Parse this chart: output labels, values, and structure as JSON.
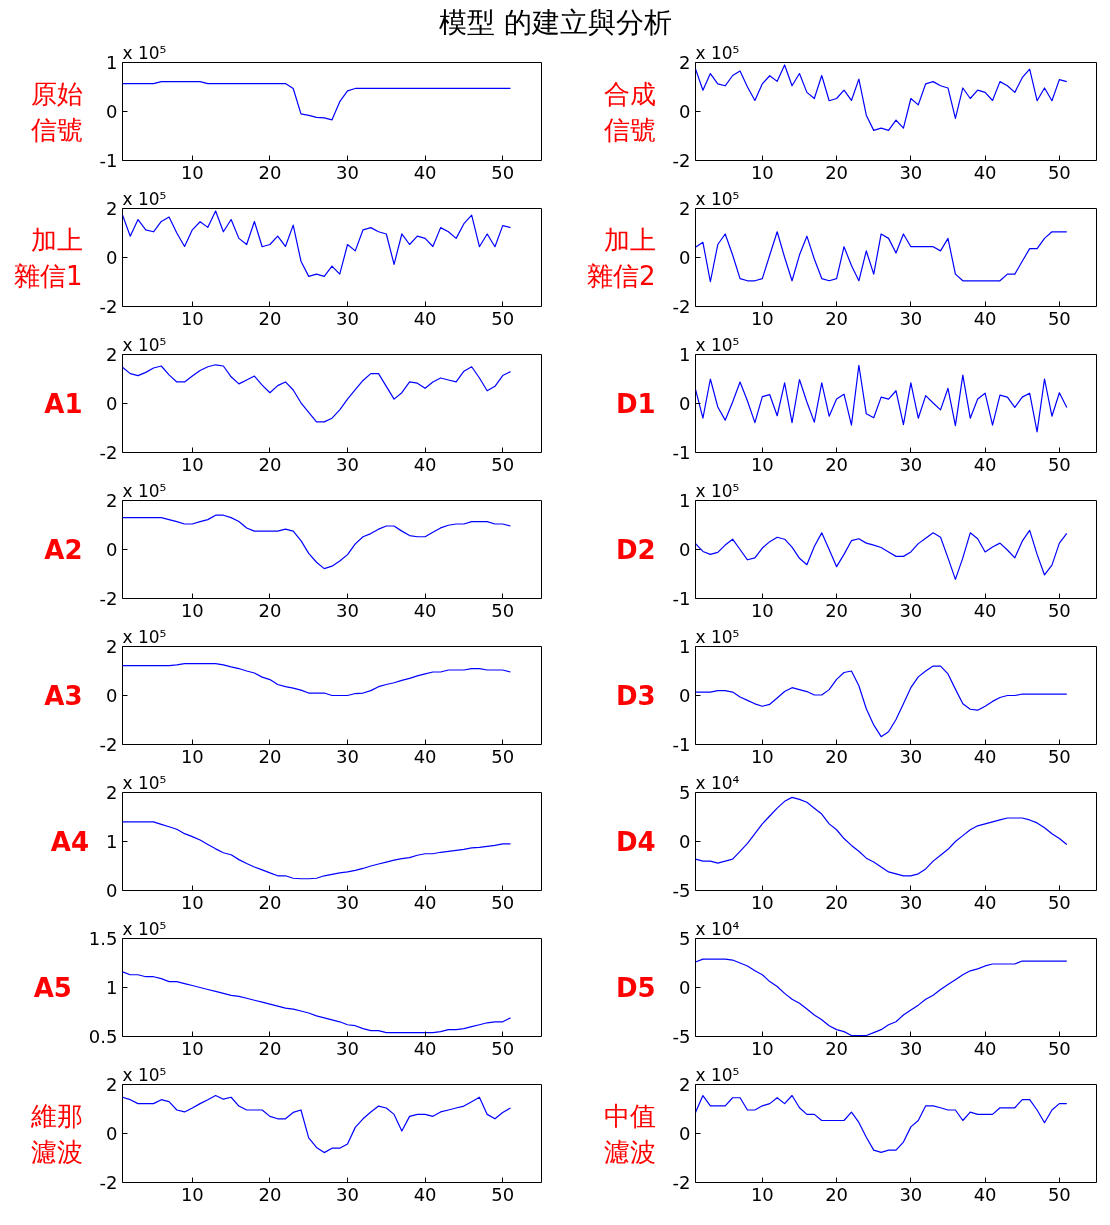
{
  "chart_data": [
    {
      "type": "line",
      "title": "模型 的建立與分析",
      "ylabel": "原始信號",
      "annotations": [
        "x 10⁵"
      ],
      "x": [
        1,
        2,
        3,
        4,
        5,
        6,
        7,
        8,
        9,
        10,
        11,
        12,
        13,
        14,
        15,
        16,
        17,
        18,
        19,
        20,
        21,
        22,
        23,
        24,
        25,
        26,
        27,
        28,
        29,
        30,
        31,
        32,
        33,
        34,
        35,
        36,
        37,
        38,
        39,
        40,
        41,
        42,
        43,
        44,
        45,
        46,
        47,
        48,
        49,
        50,
        51
      ],
      "xlim": [
        1,
        55
      ],
      "xticks": [
        10,
        20,
        30,
        40,
        50
      ],
      "ylim": [
        -1,
        1
      ],
      "yticks": [
        -1,
        0,
        1
      ],
      "series": [
        {
          "color": "#0000ff",
          "values": [
            0.57,
            0.57,
            0.57,
            0.57,
            0.57,
            0.61,
            0.61,
            0.61,
            0.61,
            0.61,
            0.61,
            0.57,
            0.57,
            0.57,
            0.57,
            0.57,
            0.57,
            0.57,
            0.57,
            0.57,
            0.57,
            0.57,
            0.47,
            -0.05,
            -0.08,
            -0.12,
            -0.13,
            -0.17,
            0.2,
            0.42,
            0.47,
            0.47,
            0.47,
            0.47,
            0.47,
            0.47,
            0.47,
            0.47,
            0.47,
            0.47,
            0.47,
            0.47,
            0.47,
            0.47,
            0.47,
            0.47,
            0.47,
            0.47,
            0.47,
            0.47,
            0.47
          ]
        }
      ]
    },
    {
      "type": "line",
      "ylabel": "合成信號",
      "annotations": [
        "x 10⁵"
      ],
      "x": [
        1,
        2,
        3,
        4,
        5,
        6,
        7,
        8,
        9,
        10,
        11,
        12,
        13,
        14,
        15,
        16,
        17,
        18,
        19,
        20,
        21,
        22,
        23,
        24,
        25,
        26,
        27,
        28,
        29,
        30,
        31,
        32,
        33,
        34,
        35,
        36,
        37,
        38,
        39,
        40,
        41,
        42,
        43,
        44,
        45,
        46,
        47,
        48,
        49,
        50,
        51
      ],
      "xlim": [
        1,
        55
      ],
      "xticks": [
        10,
        20,
        30,
        40,
        50
      ],
      "ylim": [
        -2,
        2
      ],
      "yticks": [
        -2,
        0,
        2
      ],
      "series": [
        {
          "color": "#0000ff",
          "values": [
            1.74,
            0.87,
            1.55,
            1.13,
            1.05,
            1.47,
            1.65,
            1.0,
            0.45,
            1.13,
            1.46,
            1.23,
            1.9,
            1.05,
            1.55,
            0.78,
            0.53,
            1.47,
            0.44,
            0.53,
            0.87,
            0.45,
            1.32,
            -0.15,
            -0.77,
            -0.68,
            -0.77,
            -0.35,
            -0.68,
            0.53,
            0.27,
            1.13,
            1.22,
            1.05,
            0.96,
            -0.28,
            0.96,
            0.53,
            0.87,
            0.78,
            0.45,
            1.22,
            1.05,
            0.78,
            1.38,
            1.73,
            0.44,
            0.96,
            0.44,
            1.3,
            1.22
          ]
        }
      ]
    },
    {
      "type": "line",
      "ylabel": "加上雜信1",
      "annotations": [
        "x 10⁵"
      ],
      "x": [
        1,
        2,
        3,
        4,
        5,
        6,
        7,
        8,
        9,
        10,
        11,
        12,
        13,
        14,
        15,
        16,
        17,
        18,
        19,
        20,
        21,
        22,
        23,
        24,
        25,
        26,
        27,
        28,
        29,
        30,
        31,
        32,
        33,
        34,
        35,
        36,
        37,
        38,
        39,
        40,
        41,
        42,
        43,
        44,
        45,
        46,
        47,
        48,
        49,
        50,
        51
      ],
      "xlim": [
        1,
        55
      ],
      "xticks": [
        10,
        20,
        30,
        40,
        50
      ],
      "ylim": [
        -2,
        2
      ],
      "yticks": [
        -2,
        0,
        2
      ],
      "series": [
        {
          "color": "#0000ff",
          "values": [
            1.74,
            0.87,
            1.55,
            1.13,
            1.05,
            1.47,
            1.65,
            1.0,
            0.45,
            1.13,
            1.46,
            1.23,
            1.9,
            1.05,
            1.55,
            0.78,
            0.53,
            1.47,
            0.44,
            0.53,
            0.87,
            0.45,
            1.32,
            -0.15,
            -0.77,
            -0.68,
            -0.77,
            -0.35,
            -0.68,
            0.53,
            0.27,
            1.13,
            1.22,
            1.05,
            0.96,
            -0.28,
            0.96,
            0.53,
            0.87,
            0.78,
            0.45,
            1.22,
            1.05,
            0.78,
            1.38,
            1.73,
            0.44,
            0.96,
            0.44,
            1.3,
            1.22
          ]
        }
      ]
    },
    {
      "type": "line",
      "ylabel": "加上雜信2",
      "annotations": [
        "x 10⁵"
      ],
      "x": [
        1,
        2,
        3,
        4,
        5,
        6,
        7,
        8,
        9,
        10,
        11,
        12,
        13,
        14,
        15,
        16,
        17,
        18,
        19,
        20,
        21,
        22,
        23,
        24,
        25,
        26,
        27,
        28,
        29,
        30,
        31,
        32,
        33,
        34,
        35,
        36,
        37,
        38,
        39,
        40,
        41,
        42,
        43,
        44,
        45,
        46,
        47,
        48,
        49,
        50,
        51
      ],
      "xlim": [
        1,
        55
      ],
      "xticks": [
        10,
        20,
        30,
        40,
        50
      ],
      "ylim": [
        -2,
        2
      ],
      "yticks": [
        -2,
        0,
        2
      ],
      "series": [
        {
          "color": "#0000ff",
          "values": [
            0.42,
            0.62,
            -0.99,
            0.53,
            0.96,
            0.1,
            -0.86,
            -0.95,
            -0.95,
            -0.86,
            0.1,
            1.05,
            0.01,
            -0.95,
            0.1,
            0.87,
            -0.06,
            -0.86,
            -0.95,
            -0.86,
            0.44,
            -0.33,
            -0.95,
            0.27,
            -0.68,
            0.96,
            0.78,
            0.18,
            0.96,
            0.44,
            0.44,
            0.44,
            0.44,
            0.27,
            0.78,
            -0.68,
            -0.95,
            -0.95,
            -0.95,
            -0.95,
            -0.95,
            -0.95,
            -0.68,
            -0.68,
            -0.15,
            0.36,
            0.36,
            0.78,
            1.05,
            1.05,
            1.05
          ]
        }
      ]
    },
    {
      "type": "line",
      "ylabel": "A1",
      "annotations": [
        "x 10⁵"
      ],
      "x": [
        1,
        2,
        3,
        4,
        5,
        6,
        7,
        8,
        9,
        10,
        11,
        12,
        13,
        14,
        15,
        16,
        17,
        18,
        19,
        20,
        21,
        22,
        23,
        24,
        25,
        26,
        27,
        28,
        29,
        30,
        31,
        32,
        33,
        34,
        35,
        36,
        37,
        38,
        39,
        40,
        41,
        42,
        43,
        44,
        45,
        46,
        47,
        48,
        49,
        50,
        51
      ],
      "xlim": [
        1,
        55
      ],
      "xticks": [
        10,
        20,
        30,
        40,
        50
      ],
      "ylim": [
        -2,
        2
      ],
      "yticks": [
        -2,
        0,
        2
      ],
      "series": [
        {
          "color": "#0000ff",
          "values": [
            1.48,
            1.22,
            1.14,
            1.27,
            1.45,
            1.53,
            1.17,
            0.88,
            0.88,
            1.12,
            1.35,
            1.5,
            1.58,
            1.53,
            1.09,
            0.8,
            0.96,
            1.12,
            0.75,
            0.44,
            0.73,
            0.88,
            0.55,
            0.03,
            -0.36,
            -0.75,
            -0.75,
            -0.6,
            -0.26,
            0.18,
            0.57,
            0.94,
            1.22,
            1.22,
            0.7,
            0.18,
            0.44,
            0.88,
            0.83,
            0.62,
            0.88,
            1.04,
            0.96,
            0.88,
            1.32,
            1.5,
            1.04,
            0.52,
            0.7,
            1.14,
            1.3
          ]
        }
      ]
    },
    {
      "type": "line",
      "ylabel": "D1",
      "annotations": [
        "x 10⁵"
      ],
      "x": [
        1,
        2,
        3,
        4,
        5,
        6,
        7,
        8,
        9,
        10,
        11,
        12,
        13,
        14,
        15,
        16,
        17,
        18,
        19,
        20,
        21,
        22,
        23,
        24,
        25,
        26,
        27,
        28,
        29,
        30,
        31,
        32,
        33,
        34,
        35,
        36,
        37,
        38,
        39,
        40,
        41,
        42,
        43,
        44,
        45,
        46,
        47,
        48,
        49,
        50,
        51
      ],
      "xlim": [
        1,
        55
      ],
      "xticks": [
        10,
        20,
        30,
        40,
        50
      ],
      "ylim": [
        -1,
        1
      ],
      "yticks": [
        -1,
        0,
        1
      ],
      "series": [
        {
          "color": "#0000ff",
          "values": [
            0.29,
            -0.3,
            0.5,
            -0.07,
            -0.34,
            0.03,
            0.44,
            0.05,
            -0.39,
            0.14,
            0.18,
            -0.25,
            0.42,
            -0.39,
            0.49,
            0.03,
            -0.38,
            0.42,
            -0.26,
            0.09,
            0.19,
            -0.44,
            0.78,
            -0.21,
            -0.29,
            0.13,
            0.09,
            0.26,
            -0.43,
            0.42,
            -0.3,
            0.16,
            0.01,
            -0.13,
            0.31,
            -0.45,
            0.58,
            -0.3,
            0.09,
            0.21,
            -0.44,
            0.17,
            0.13,
            -0.08,
            0.13,
            0.21,
            -0.58,
            0.5,
            -0.26,
            0.22,
            -0.08
          ]
        }
      ]
    },
    {
      "type": "line",
      "ylabel": "A2",
      "annotations": [
        "x 10⁵"
      ],
      "x": [
        1,
        2,
        3,
        4,
        5,
        6,
        7,
        8,
        9,
        10,
        11,
        12,
        13,
        14,
        15,
        16,
        17,
        18,
        19,
        20,
        21,
        22,
        23,
        24,
        25,
        26,
        27,
        28,
        29,
        30,
        31,
        32,
        33,
        34,
        35,
        36,
        37,
        38,
        39,
        40,
        41,
        42,
        43,
        44,
        45,
        46,
        47,
        48,
        49,
        50,
        51
      ],
      "xlim": [
        1,
        55
      ],
      "xticks": [
        10,
        20,
        30,
        40,
        50
      ],
      "ylim": [
        -2,
        2
      ],
      "yticks": [
        -2,
        0,
        2
      ],
      "series": [
        {
          "color": "#0000ff",
          "values": [
            1.3,
            1.3,
            1.3,
            1.3,
            1.3,
            1.3,
            1.22,
            1.14,
            1.04,
            1.04,
            1.14,
            1.22,
            1.4,
            1.4,
            1.3,
            1.14,
            0.88,
            0.75,
            0.75,
            0.75,
            0.75,
            0.83,
            0.75,
            0.36,
            -0.16,
            -0.52,
            -0.78,
            -0.68,
            -0.47,
            -0.21,
            0.23,
            0.52,
            0.65,
            0.83,
            0.96,
            0.96,
            0.75,
            0.57,
            0.52,
            0.52,
            0.7,
            0.88,
            0.99,
            1.04,
            1.04,
            1.14,
            1.14,
            1.14,
            1.04,
            1.04,
            0.96
          ]
        }
      ]
    },
    {
      "type": "line",
      "ylabel": "D2",
      "annotations": [
        "x 10⁵"
      ],
      "x": [
        1,
        2,
        3,
        4,
        5,
        6,
        7,
        8,
        9,
        10,
        11,
        12,
        13,
        14,
        15,
        16,
        17,
        18,
        19,
        20,
        21,
        22,
        23,
        24,
        25,
        26,
        27,
        28,
        29,
        30,
        31,
        32,
        33,
        34,
        35,
        36,
        37,
        38,
        39,
        40,
        41,
        42,
        43,
        44,
        45,
        46,
        47,
        48,
        49,
        50,
        51
      ],
      "xlim": [
        1,
        55
      ],
      "xticks": [
        10,
        20,
        30,
        40,
        50
      ],
      "ylim": [
        -1,
        1
      ],
      "yticks": [
        -1,
        0,
        1
      ],
      "series": [
        {
          "color": "#0000ff",
          "values": [
            0.12,
            -0.04,
            -0.1,
            -0.06,
            0.09,
            0.21,
            0,
            -0.21,
            -0.17,
            0.03,
            0.16,
            0.25,
            0.21,
            0.05,
            -0.18,
            -0.31,
            0.06,
            0.34,
            0,
            -0.35,
            -0.1,
            0.18,
            0.22,
            0.13,
            0.09,
            0.04,
            -0.05,
            -0.14,
            -0.14,
            -0.05,
            0.12,
            0.23,
            0.34,
            0.25,
            -0.17,
            -0.61,
            -0.17,
            0.34,
            0.22,
            -0.05,
            0.05,
            0.13,
            -0.01,
            -0.17,
            0.17,
            0.39,
            -0.1,
            -0.52,
            -0.32,
            0.13,
            0.33
          ]
        }
      ]
    },
    {
      "type": "line",
      "ylabel": "A3",
      "annotations": [
        "x 10⁵"
      ],
      "x": [
        1,
        2,
        3,
        4,
        5,
        6,
        7,
        8,
        9,
        10,
        11,
        12,
        13,
        14,
        15,
        16,
        17,
        18,
        19,
        20,
        21,
        22,
        23,
        24,
        25,
        26,
        27,
        28,
        29,
        30,
        31,
        32,
        33,
        34,
        35,
        36,
        37,
        38,
        39,
        40,
        41,
        42,
        43,
        44,
        45,
        46,
        47,
        48,
        49,
        50,
        51
      ],
      "xlim": [
        1,
        55
      ],
      "xticks": [
        10,
        20,
        30,
        40,
        50
      ],
      "ylim": [
        -2,
        2
      ],
      "yticks": [
        -2,
        0,
        2
      ],
      "series": [
        {
          "color": "#0000ff",
          "values": [
            1.22,
            1.22,
            1.22,
            1.22,
            1.22,
            1.22,
            1.22,
            1.25,
            1.3,
            1.3,
            1.3,
            1.3,
            1.3,
            1.25,
            1.17,
            1.1,
            1.0,
            0.92,
            0.75,
            0.65,
            0.45,
            0.36,
            0.3,
            0.22,
            0.1,
            0.1,
            0.1,
            0.0,
            0.0,
            0.0,
            0.08,
            0.1,
            0.2,
            0.36,
            0.45,
            0.52,
            0.62,
            0.7,
            0.8,
            0.88,
            0.96,
            0.96,
            1.04,
            1.04,
            1.04,
            1.1,
            1.1,
            1.04,
            1.04,
            1.04,
            0.96
          ]
        }
      ]
    },
    {
      "type": "line",
      "ylabel": "D3",
      "annotations": [
        "x 10⁵"
      ],
      "x": [
        1,
        2,
        3,
        4,
        5,
        6,
        7,
        8,
        9,
        10,
        11,
        12,
        13,
        14,
        15,
        16,
        17,
        18,
        19,
        20,
        21,
        22,
        23,
        24,
        25,
        26,
        27,
        28,
        29,
        30,
        31,
        32,
        33,
        34,
        35,
        36,
        37,
        38,
        39,
        40,
        41,
        42,
        43,
        44,
        45,
        46,
        47,
        48,
        49,
        50,
        51
      ],
      "xlim": [
        1,
        55
      ],
      "xticks": [
        10,
        20,
        30,
        40,
        50
      ],
      "ylim": [
        -1,
        1
      ],
      "yticks": [
        -1,
        0,
        1
      ],
      "series": [
        {
          "color": "#0000ff",
          "values": [
            0.07,
            0.07,
            0.07,
            0.1,
            0.1,
            0.07,
            -0.03,
            -0.1,
            -0.17,
            -0.22,
            -0.18,
            -0.05,
            0.08,
            0.16,
            0.12,
            0.08,
            0.01,
            0.01,
            0.12,
            0.33,
            0.47,
            0.5,
            0.2,
            -0.27,
            -0.6,
            -0.84,
            -0.74,
            -0.49,
            -0.17,
            0.16,
            0.38,
            0.5,
            0.6,
            0.6,
            0.44,
            0.13,
            -0.17,
            -0.28,
            -0.3,
            -0.22,
            -0.12,
            -0.04,
            0,
            0,
            0.03,
            0.03,
            0.03,
            0.03,
            0.03,
            0.03,
            0.03
          ]
        }
      ]
    },
    {
      "type": "line",
      "ylabel": "A4",
      "annotations": [
        "x 10⁵"
      ],
      "x": [
        1,
        2,
        3,
        4,
        5,
        6,
        7,
        8,
        9,
        10,
        11,
        12,
        13,
        14,
        15,
        16,
        17,
        18,
        19,
        20,
        21,
        22,
        23,
        24,
        25,
        26,
        27,
        28,
        29,
        30,
        31,
        32,
        33,
        34,
        35,
        36,
        37,
        38,
        39,
        40,
        41,
        42,
        43,
        44,
        45,
        46,
        47,
        48,
        49,
        50,
        51
      ],
      "xlim": [
        1,
        55
      ],
      "xticks": [
        10,
        20,
        30,
        40,
        50
      ],
      "ylim": [
        0,
        2
      ],
      "yticks": [
        0,
        1,
        2
      ],
      "series": [
        {
          "color": "#0000ff",
          "values": [
            1.4,
            1.4,
            1.4,
            1.4,
            1.4,
            1.35,
            1.3,
            1.25,
            1.16,
            1.1,
            1.03,
            0.94,
            0.85,
            0.77,
            0.73,
            0.63,
            0.55,
            0.48,
            0.42,
            0.36,
            0.3,
            0.3,
            0.25,
            0.24,
            0.24,
            0.25,
            0.3,
            0.33,
            0.36,
            0.38,
            0.41,
            0.45,
            0.5,
            0.54,
            0.58,
            0.62,
            0.65,
            0.67,
            0.72,
            0.75,
            0.75,
            0.78,
            0.8,
            0.82,
            0.84,
            0.87,
            0.88,
            0.9,
            0.92,
            0.95,
            0.95
          ]
        }
      ]
    },
    {
      "type": "line",
      "ylabel": "D4",
      "annotations": [
        "x 10⁴"
      ],
      "x": [
        1,
        2,
        3,
        4,
        5,
        6,
        7,
        8,
        9,
        10,
        11,
        12,
        13,
        14,
        15,
        16,
        17,
        18,
        19,
        20,
        21,
        22,
        23,
        24,
        25,
        26,
        27,
        28,
        29,
        30,
        31,
        32,
        33,
        34,
        35,
        36,
        37,
        38,
        39,
        40,
        41,
        42,
        43,
        44,
        45,
        46,
        47,
        48,
        49,
        50,
        51
      ],
      "xlim": [
        1,
        55
      ],
      "xticks": [
        10,
        20,
        30,
        40,
        50
      ],
      "ylim": [
        -5,
        5
      ],
      "yticks": [
        -5,
        0,
        5
      ],
      "series": [
        {
          "color": "#0000ff",
          "values": [
            -1.8,
            -2.0,
            -2.0,
            -2.2,
            -2.0,
            -1.8,
            -1.0,
            -0.2,
            0.8,
            1.8,
            2.6,
            3.4,
            4.1,
            4.5,
            4.3,
            4.0,
            3.4,
            2.8,
            1.8,
            1.2,
            0.3,
            -0.4,
            -1.0,
            -1.7,
            -2.1,
            -2.6,
            -3.1,
            -3.3,
            -3.5,
            -3.5,
            -3.3,
            -2.8,
            -2.0,
            -1.4,
            -0.8,
            0.0,
            0.6,
            1.2,
            1.6,
            1.8,
            2.0,
            2.2,
            2.4,
            2.4,
            2.4,
            2.2,
            1.9,
            1.4,
            0.8,
            0.3,
            -0.3
          ]
        }
      ]
    },
    {
      "type": "line",
      "ylabel": "A5",
      "annotations": [
        "x 10⁵"
      ],
      "x": [
        1,
        2,
        3,
        4,
        5,
        6,
        7,
        8,
        9,
        10,
        11,
        12,
        13,
        14,
        15,
        16,
        17,
        18,
        19,
        20,
        21,
        22,
        23,
        24,
        25,
        26,
        27,
        28,
        29,
        30,
        31,
        32,
        33,
        34,
        35,
        36,
        37,
        38,
        39,
        40,
        41,
        42,
        43,
        44,
        45,
        46,
        47,
        48,
        49,
        50,
        51
      ],
      "xlim": [
        1,
        55
      ],
      "xticks": [
        10,
        20,
        30,
        40,
        50
      ],
      "ylim": [
        0.5,
        1.5
      ],
      "yticks": [
        0.5,
        1,
        1.5
      ],
      "series": [
        {
          "color": "#0000ff",
          "values": [
            1.16,
            1.13,
            1.13,
            1.11,
            1.11,
            1.09,
            1.06,
            1.06,
            1.04,
            1.02,
            1.0,
            0.98,
            0.96,
            0.94,
            0.92,
            0.91,
            0.89,
            0.87,
            0.85,
            0.83,
            0.81,
            0.79,
            0.78,
            0.76,
            0.74,
            0.71,
            0.69,
            0.67,
            0.65,
            0.62,
            0.61,
            0.58,
            0.56,
            0.56,
            0.54,
            0.54,
            0.54,
            0.54,
            0.54,
            0.54,
            0.54,
            0.55,
            0.57,
            0.57,
            0.58,
            0.6,
            0.62,
            0.64,
            0.65,
            0.65,
            0.69
          ]
        }
      ]
    },
    {
      "type": "line",
      "ylabel": "D5",
      "annotations": [
        "x 10⁴"
      ],
      "x": [
        1,
        2,
        3,
        4,
        5,
        6,
        7,
        8,
        9,
        10,
        11,
        12,
        13,
        14,
        15,
        16,
        17,
        18,
        19,
        20,
        21,
        22,
        23,
        24,
        25,
        26,
        27,
        28,
        29,
        30,
        31,
        32,
        33,
        34,
        35,
        36,
        37,
        38,
        39,
        40,
        41,
        42,
        43,
        44,
        45,
        46,
        47,
        48,
        49,
        50,
        51
      ],
      "xlim": [
        1,
        55
      ],
      "xticks": [
        10,
        20,
        30,
        40,
        50
      ],
      "ylim": [
        -5,
        5
      ],
      "yticks": [
        -5,
        0,
        5
      ],
      "series": [
        {
          "color": "#0000ff",
          "values": [
            2.6,
            2.9,
            2.9,
            2.9,
            2.9,
            2.8,
            2.5,
            2.2,
            1.7,
            1.3,
            0.6,
            0.1,
            -0.6,
            -1.2,
            -1.6,
            -2.2,
            -2.8,
            -3.3,
            -3.9,
            -4.3,
            -4.5,
            -4.9,
            -4.9,
            -4.9,
            -4.6,
            -4.3,
            -3.8,
            -3.5,
            -2.8,
            -2.3,
            -1.8,
            -1.2,
            -0.8,
            -0.2,
            0.3,
            0.8,
            1.3,
            1.7,
            1.9,
            2.2,
            2.4,
            2.4,
            2.4,
            2.4,
            2.7,
            2.7,
            2.7,
            2.7,
            2.7,
            2.7,
            2.7
          ]
        }
      ]
    },
    {
      "type": "line",
      "ylabel": "維那濾波",
      "annotations": [
        "x 10⁵"
      ],
      "x": [
        1,
        2,
        3,
        4,
        5,
        6,
        7,
        8,
        9,
        10,
        11,
        12,
        13,
        14,
        15,
        16,
        17,
        18,
        19,
        20,
        21,
        22,
        23,
        24,
        25,
        26,
        27,
        28,
        29,
        30,
        31,
        32,
        33,
        34,
        35,
        36,
        37,
        38,
        39,
        40,
        41,
        42,
        43,
        44,
        45,
        46,
        47,
        48,
        49,
        50,
        51
      ],
      "xlim": [
        1,
        55
      ],
      "xticks": [
        10,
        20,
        30,
        40,
        50
      ],
      "ylim": [
        -2,
        2
      ],
      "yticks": [
        -2,
        0,
        2
      ],
      "series": [
        {
          "color": "#0000ff",
          "values": [
            1.48,
            1.38,
            1.22,
            1.22,
            1.22,
            1.38,
            1.3,
            0.96,
            0.88,
            1.04,
            1.22,
            1.38,
            1.55,
            1.4,
            1.48,
            1.12,
            0.96,
            0.96,
            0.96,
            0.7,
            0.6,
            0.6,
            0.86,
            0.96,
            -0.18,
            -0.57,
            -0.78,
            -0.6,
            -0.6,
            -0.43,
            0.25,
            0.6,
            0.88,
            1.12,
            1.04,
            0.78,
            0.1,
            0.7,
            0.78,
            0.78,
            0.7,
            0.88,
            0.96,
            1.04,
            1.12,
            1.3,
            1.48,
            0.78,
            0.6,
            0.86,
            1.04
          ]
        }
      ]
    },
    {
      "type": "line",
      "ylabel": "中值濾波",
      "annotations": [
        "x 10⁵"
      ],
      "x": [
        1,
        2,
        3,
        4,
        5,
        6,
        7,
        8,
        9,
        10,
        11,
        12,
        13,
        14,
        15,
        16,
        17,
        18,
        19,
        20,
        21,
        22,
        23,
        24,
        25,
        26,
        27,
        28,
        29,
        30,
        31,
        32,
        33,
        34,
        35,
        36,
        37,
        38,
        39,
        40,
        41,
        42,
        43,
        44,
        45,
        46,
        47,
        48,
        49,
        50,
        51
      ],
      "xlim": [
        1,
        55
      ],
      "xticks": [
        10,
        20,
        30,
        40,
        50
      ],
      "ylim": [
        -2,
        2
      ],
      "yticks": [
        -2,
        0,
        2
      ],
      "series": [
        {
          "color": "#0000ff",
          "values": [
            0.86,
            1.55,
            1.13,
            1.13,
            1.13,
            1.46,
            1.46,
            0.96,
            0.96,
            1.13,
            1.22,
            1.46,
            1.22,
            1.55,
            1.05,
            0.78,
            0.78,
            0.53,
            0.53,
            0.53,
            0.53,
            0.87,
            0.45,
            -0.15,
            -0.68,
            -0.77,
            -0.68,
            -0.68,
            -0.35,
            0.27,
            0.53,
            1.13,
            1.13,
            1.05,
            0.96,
            0.96,
            0.53,
            0.87,
            0.78,
            0.78,
            0.78,
            1.05,
            1.05,
            1.05,
            1.38,
            1.38,
            0.96,
            0.44,
            0.96,
            1.22,
            1.22
          ]
        }
      ]
    }
  ]
}
